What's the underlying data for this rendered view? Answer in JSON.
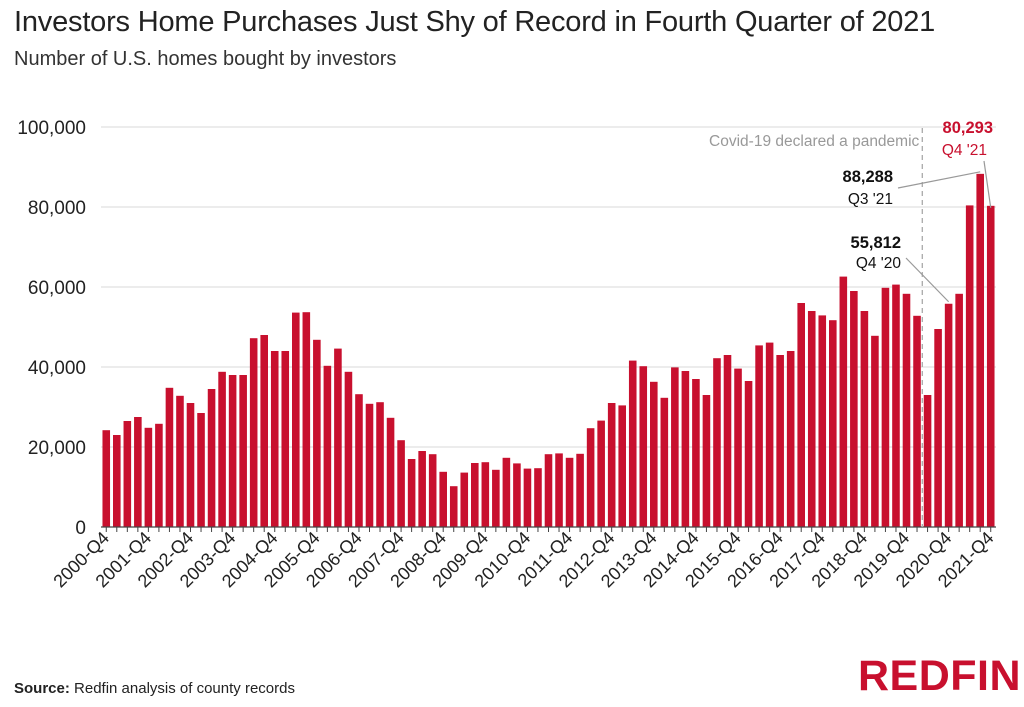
{
  "title": "Investors Home Purchases Just Shy of Record in Fourth Quarter of 2021",
  "subtitle": "Number of U.S. homes bought by investors",
  "source_label": "Source:",
  "source_text": "Redfin analysis of county records",
  "logo_text": "REDFIN",
  "colors": {
    "bar": "#c8102e",
    "highlight": "#c8102e",
    "grid": "#d9d9d9",
    "vline": "#aaaaaa",
    "text": "#222222"
  },
  "chart_data": {
    "type": "bar",
    "y_ticks": [
      "0",
      "20,000",
      "40,000",
      "60,000",
      "80,000",
      "100,000"
    ],
    "ylim": [
      0,
      100000
    ],
    "x_tick_labels": [
      "2000-Q4",
      "2001-Q4",
      "2002-Q4",
      "2003-Q4",
      "2004-Q4",
      "2005-Q4",
      "2006-Q4",
      "2007-Q4",
      "2008-Q4",
      "2009-Q4",
      "2010-Q4",
      "2011-Q4",
      "2012-Q4",
      "2013-Q4",
      "2014-Q4",
      "2015-Q4",
      "2016-Q4",
      "2017-Q4",
      "2018-Q4",
      "2019-Q4",
      "2020-Q4",
      "2021-Q4"
    ],
    "categories": [
      "2000-Q4",
      "2001-Q1",
      "2001-Q2",
      "2001-Q3",
      "2001-Q4",
      "2002-Q1",
      "2002-Q2",
      "2002-Q3",
      "2002-Q4",
      "2003-Q1",
      "2003-Q2",
      "2003-Q3",
      "2003-Q4",
      "2004-Q1",
      "2004-Q2",
      "2004-Q3",
      "2004-Q4",
      "2005-Q1",
      "2005-Q2",
      "2005-Q3",
      "2005-Q4",
      "2006-Q1",
      "2006-Q2",
      "2006-Q3",
      "2006-Q4",
      "2007-Q1",
      "2007-Q2",
      "2007-Q3",
      "2007-Q4",
      "2008-Q1",
      "2008-Q2",
      "2008-Q3",
      "2008-Q4",
      "2009-Q1",
      "2009-Q2",
      "2009-Q3",
      "2009-Q4",
      "2010-Q1",
      "2010-Q2",
      "2010-Q3",
      "2010-Q4",
      "2011-Q1",
      "2011-Q2",
      "2011-Q3",
      "2011-Q4",
      "2012-Q1",
      "2012-Q2",
      "2012-Q3",
      "2012-Q4",
      "2013-Q1",
      "2013-Q2",
      "2013-Q3",
      "2013-Q4",
      "2014-Q1",
      "2014-Q2",
      "2014-Q3",
      "2014-Q4",
      "2015-Q1",
      "2015-Q2",
      "2015-Q3",
      "2015-Q4",
      "2016-Q1",
      "2016-Q2",
      "2016-Q3",
      "2016-Q4",
      "2017-Q1",
      "2017-Q2",
      "2017-Q3",
      "2017-Q4",
      "2018-Q1",
      "2018-Q2",
      "2018-Q3",
      "2018-Q4",
      "2019-Q1",
      "2019-Q2",
      "2019-Q3",
      "2019-Q4",
      "2020-Q1",
      "2020-Q2",
      "2020-Q3",
      "2020-Q4",
      "2021-Q1",
      "2021-Q2",
      "2021-Q3",
      "2021-Q4"
    ],
    "values": [
      24200,
      23000,
      26500,
      27500,
      24800,
      25800,
      34800,
      32800,
      31000,
      28500,
      34500,
      38800,
      38000,
      38000,
      47200,
      48000,
      44000,
      44000,
      53600,
      53700,
      46800,
      40300,
      44600,
      38800,
      33200,
      30800,
      31200,
      27300,
      21700,
      17000,
      19000,
      18200,
      13800,
      10200,
      13600,
      16000,
      16200,
      14300,
      17300,
      15900,
      14600,
      14700,
      18200,
      18400,
      17300,
      18300,
      24700,
      26600,
      31000,
      30400,
      41600,
      40200,
      36300,
      32300,
      39900,
      39000,
      37000,
      33000,
      42200,
      43000,
      39600,
      36500,
      45400,
      46100,
      43000,
      44000,
      56000,
      54000,
      52900,
      51700,
      62600,
      59000,
      54000,
      47800,
      59800,
      60600,
      58300,
      52800,
      33000,
      49500,
      55812,
      58300,
      80400,
      88288,
      80293
    ],
    "pandemic_index": 77,
    "annotations": [
      {
        "index": 80,
        "value_label": "55,812",
        "period_label": "Q4 '20",
        "highlight": false
      },
      {
        "index": 83,
        "value_label": "88,288",
        "period_label": "Q3 '21",
        "highlight": false
      },
      {
        "index": 84,
        "value_label": "80,293",
        "period_label": "Q4 '21",
        "highlight": true
      }
    ],
    "vline_label": "Covid-19 declared a pandemic"
  }
}
